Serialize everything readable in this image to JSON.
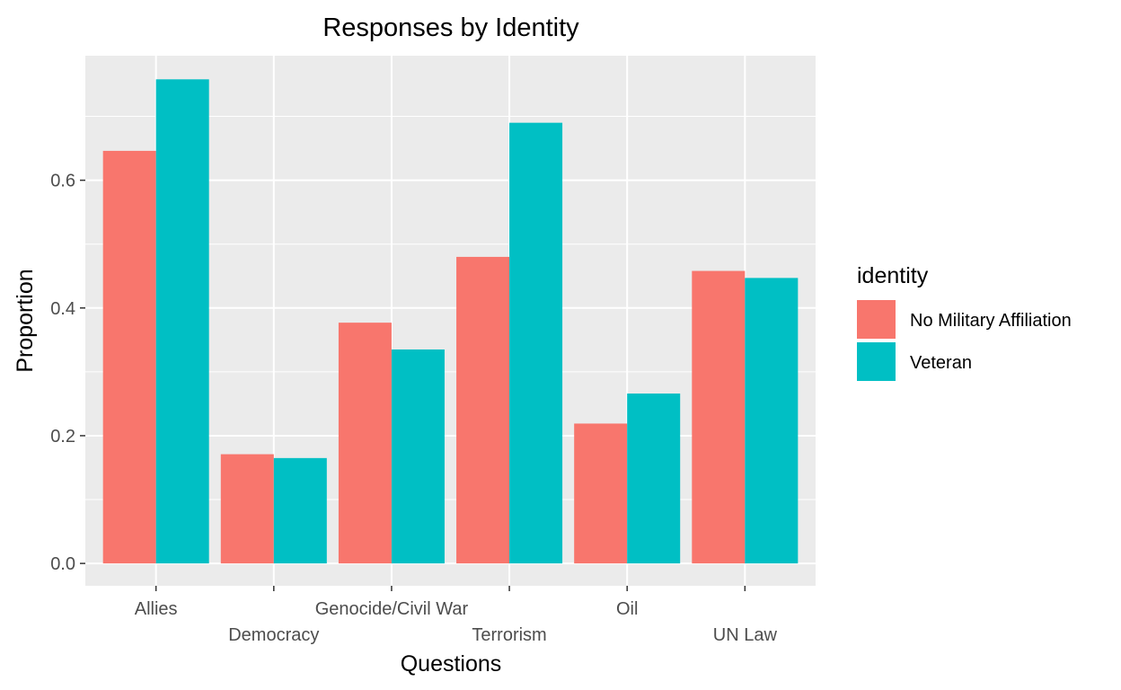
{
  "chart_data": {
    "type": "bar",
    "title": "Responses by Identity",
    "xlabel": "Questions",
    "ylabel": "Proportion",
    "categories": [
      "Allies",
      "Democracy",
      "Genocide/Civil War",
      "Terrorism",
      "Oil",
      "UN Law"
    ],
    "series": [
      {
        "name": "No Military Affiliation",
        "color": "#F8766D",
        "values": [
          0.646,
          0.171,
          0.377,
          0.48,
          0.219,
          0.458
        ]
      },
      {
        "name": "Veteran",
        "color": "#00BFC4",
        "values": [
          0.758,
          0.165,
          0.335,
          0.69,
          0.266,
          0.447
        ]
      }
    ],
    "ylim": [
      -0.035,
      0.795
    ],
    "yticks": [
      0.0,
      0.2,
      0.4,
      0.6
    ],
    "ytick_labels": [
      "0.0",
      "0.2",
      "0.4",
      "0.6"
    ],
    "grid": true,
    "legend": {
      "title": "identity",
      "position": "right"
    },
    "panel_background": "#EBEBEB",
    "grid_color": "#FFFFFF"
  }
}
